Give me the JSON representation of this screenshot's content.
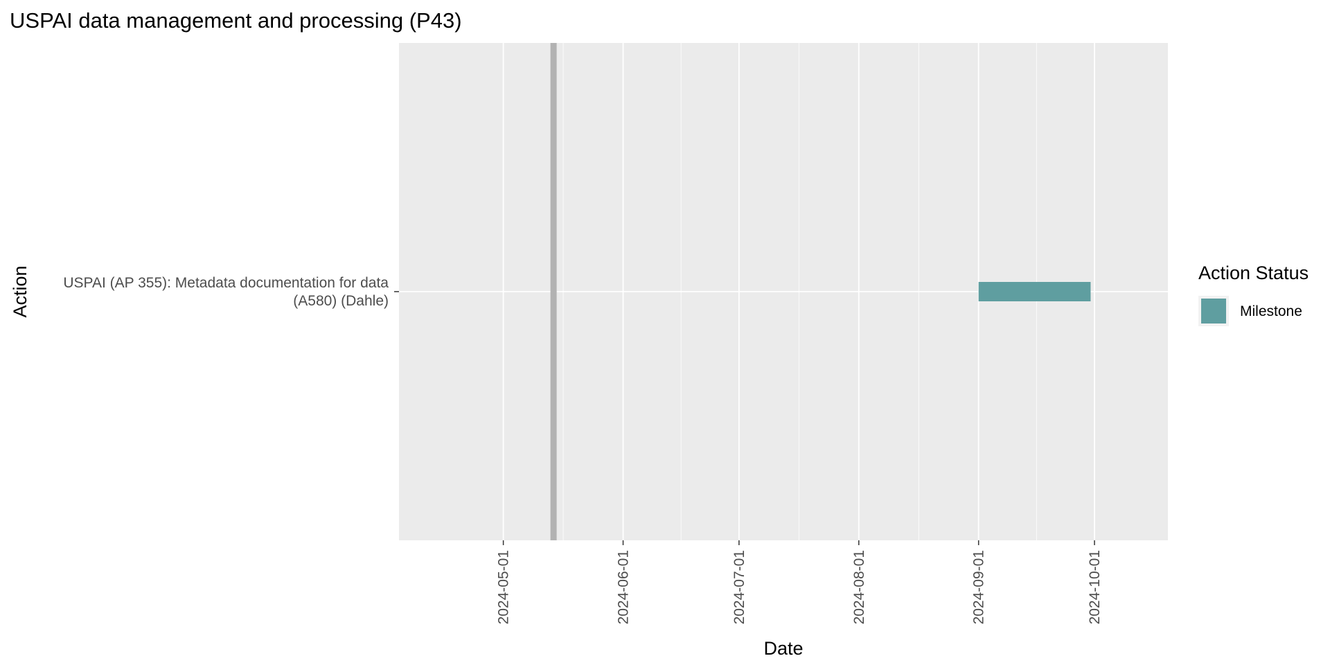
{
  "chart_data": {
    "type": "gantt",
    "title": "USPAI data management and processing (P43)",
    "xlabel": "Date",
    "ylabel": "Action",
    "x_range": [
      "2024-04-04",
      "2024-10-20"
    ],
    "x_ticks": [
      "2024-05-01",
      "2024-06-01",
      "2024-07-01",
      "2024-08-01",
      "2024-09-01",
      "2024-10-01"
    ],
    "categories": [
      [
        "USPAI (AP 355): Metadata documentation for data",
        "(A580) (Dahle)"
      ]
    ],
    "tasks": [
      {
        "category_index": 0,
        "start": "2024-09-01",
        "end": "2024-09-30",
        "status": "Milestone"
      }
    ],
    "reference_line": {
      "date": "2024-05-14",
      "color": "#b2b2b2"
    },
    "legend": {
      "title": "Action Status",
      "position": "right",
      "items": [
        {
          "label": "Milestone",
          "color": "#5f9ea0"
        }
      ]
    },
    "panel_background": "#ebebeb",
    "grid_color": "#ffffff",
    "grid": true
  }
}
